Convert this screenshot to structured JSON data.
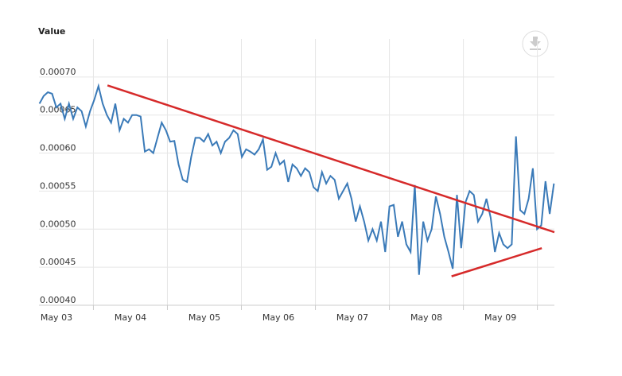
{
  "chart_data": {
    "type": "line",
    "title": "Value",
    "x": [
      2.77,
      2.827,
      2.884,
      2.941,
      2.998,
      3.055,
      3.112,
      3.169,
      3.226,
      3.283,
      3.34,
      3.397,
      3.454,
      3.511,
      3.568,
      3.625,
      3.682,
      3.739,
      3.796,
      3.853,
      3.91,
      3.967,
      4.024,
      4.081,
      4.138,
      4.195,
      4.252,
      4.309,
      4.366,
      4.423,
      4.48,
      4.537,
      4.594,
      4.651,
      4.708,
      4.765,
      4.822,
      4.879,
      4.936,
      4.993,
      5.05,
      5.107,
      5.164,
      5.221,
      5.278,
      5.335,
      5.392,
      5.449,
      5.506,
      5.563,
      5.62,
      5.677,
      5.734,
      5.791,
      5.848,
      5.905,
      5.962,
      6.019,
      6.076,
      6.133,
      6.19,
      6.247,
      6.304,
      6.361,
      6.418,
      6.475,
      6.532,
      6.589,
      6.646,
      6.703,
      6.76,
      6.817,
      6.874,
      6.931,
      6.988,
      7.045,
      7.102,
      7.159,
      7.216,
      7.273,
      7.33,
      7.387,
      7.444,
      7.501,
      7.558,
      7.615,
      7.672,
      7.729,
      7.786,
      7.843,
      7.9,
      7.957,
      8.014,
      8.071,
      8.128,
      8.185,
      8.242,
      8.299,
      8.356,
      8.413,
      8.47,
      8.527,
      8.584,
      8.641,
      8.698,
      8.755,
      8.812,
      8.869,
      8.926,
      8.983,
      9.04,
      9.097,
      9.154,
      9.211,
      9.268,
      9.325,
      9.382,
      9.439,
      9.496,
      9.553,
      9.61,
      9.667,
      9.724
    ],
    "series": [
      {
        "name": "Value",
        "color": "#3a7ab8",
        "values": [
          0.000665,
          0.000675,
          0.00068,
          0.000678,
          0.00066,
          0.000665,
          0.000645,
          0.000665,
          0.000645,
          0.00066,
          0.000655,
          0.000635,
          0.000655,
          0.00067,
          0.000688,
          0.000665,
          0.00065,
          0.00064,
          0.000665,
          0.00063,
          0.000645,
          0.00064,
          0.00065,
          0.00065,
          0.000648,
          0.000602,
          0.000605,
          0.0006,
          0.00062,
          0.00064,
          0.00063,
          0.000615,
          0.000616,
          0.000585,
          0.000565,
          0.000562,
          0.000595,
          0.00062,
          0.00062,
          0.000615,
          0.000625,
          0.00061,
          0.000615,
          0.0006,
          0.000615,
          0.00062,
          0.00063,
          0.000625,
          0.000595,
          0.000605,
          0.000602,
          0.000598,
          0.000605,
          0.000618,
          0.000578,
          0.000582,
          0.0006,
          0.000585,
          0.00059,
          0.000562,
          0.000585,
          0.00058,
          0.00057,
          0.00058,
          0.000575,
          0.000555,
          0.00055,
          0.000575,
          0.00056,
          0.00057,
          0.000565,
          0.00054,
          0.00055,
          0.00056,
          0.00054,
          0.00051,
          0.00053,
          0.00051,
          0.000485,
          0.0005,
          0.000485,
          0.00051,
          0.00047,
          0.00053,
          0.000532,
          0.00049,
          0.00051,
          0.00048,
          0.00047,
          0.000558,
          0.00044,
          0.00051,
          0.000485,
          0.0005,
          0.000543,
          0.00052,
          0.00049,
          0.00047,
          0.000448,
          0.000545,
          0.000475,
          0.000535,
          0.00055,
          0.000545,
          0.00051,
          0.00052,
          0.00054,
          0.000515,
          0.00047,
          0.000495,
          0.00048,
          0.000475,
          0.00048,
          0.000622,
          0.000525,
          0.00052,
          0.00054,
          0.00058,
          0.0005,
          0.000505,
          0.000563,
          0.00052,
          0.00056
        ]
      }
    ],
    "trend_lines": [
      {
        "color": "#d62a2a",
        "x": [
          3.69,
          9.73
        ],
        "values": [
          0.000689,
          0.000496
        ]
      },
      {
        "color": "#d62a2a",
        "x": [
          8.34,
          9.56
        ],
        "values": [
          0.000438,
          0.000475
        ]
      }
    ],
    "xlim": [
      2.764,
      9.73
    ],
    "xticks": [
      {
        "value": 3,
        "label": "May 03"
      },
      {
        "value": 4,
        "label": "May 04"
      },
      {
        "value": 5,
        "label": "May 05"
      },
      {
        "value": 6,
        "label": "May 06"
      },
      {
        "value": 7,
        "label": "May 07"
      },
      {
        "value": 8,
        "label": "May 08"
      },
      {
        "value": 9,
        "label": "May 09"
      }
    ],
    "ylim": [
      0.0004,
      0.00075
    ],
    "yticks": [
      {
        "value": 0.0004,
        "label": "0.00040"
      },
      {
        "value": 0.00045,
        "label": "0.00045"
      },
      {
        "value": 0.0005,
        "label": "0.00050"
      },
      {
        "value": 0.00055,
        "label": "0.00055"
      },
      {
        "value": 0.0006,
        "label": "0.00060"
      },
      {
        "value": 0.00065,
        "label": "0.00065"
      },
      {
        "value": 0.0007,
        "label": "0.00070"
      }
    ],
    "grid": true
  }
}
